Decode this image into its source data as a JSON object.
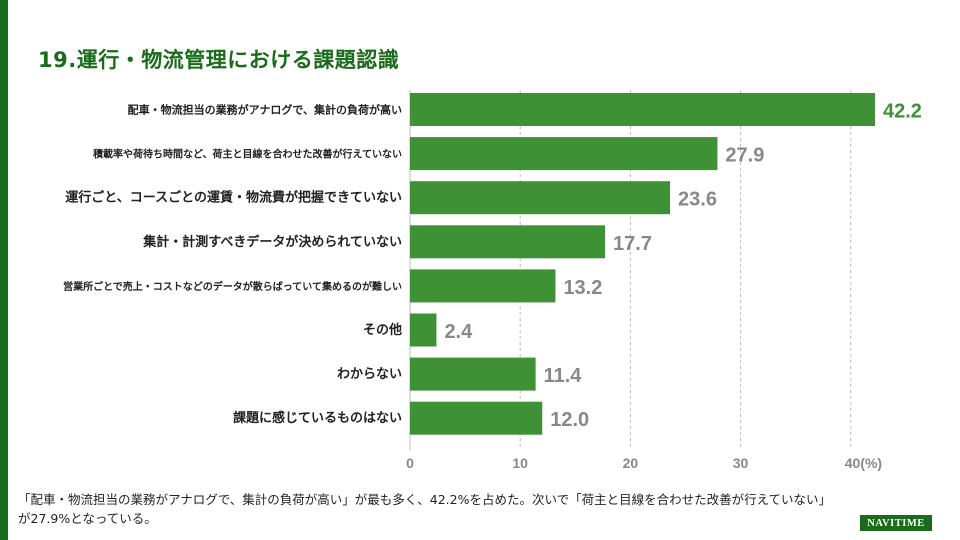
{
  "title": "19.運行・物流管理における課題認識",
  "chart_data": {
    "type": "bar",
    "orientation": "horizontal",
    "categories": [
      "配車・物流担当の業務がアナログで、集計の負荷が高い",
      "積載率や荷待ち時間など、荷主と目線を合わせた改善が行えていない",
      "運行ごと、コースごとの運賃・物流費が把握できていない",
      "集計・計測すべきデータが決められていない",
      "営業所ごとで売上・コストなどのデータが散らばっていて集めるのが難しい",
      "その他",
      "わからない",
      "課題に感じているものはない"
    ],
    "values": [
      42.2,
      27.9,
      23.6,
      17.7,
      13.2,
      2.4,
      11.4,
      12.0
    ],
    "value_labels": [
      "42.2",
      "27.9",
      "23.6",
      "17.7",
      "13.2",
      "2.4",
      "11.4",
      "12.0"
    ],
    "xlim": [
      0,
      42.2
    ],
    "xticks": [
      0,
      10,
      20,
      30,
      40
    ],
    "xtick_labels": [
      "0",
      "10",
      "20",
      "30",
      "40(%)"
    ],
    "xlabel": "(%)",
    "grid": true,
    "bar_color": "#3e9135",
    "highlight_label_color": "#3e9135",
    "label_color": "#888888"
  },
  "footer": {
    "line1": "「配車・物流担当の業務がアナログで、集計の負荷が高い」が最も多く、42.2%を占めた。次いで「荷主と目線を合わせた改善が行えていない」",
    "line2": "が27.9%となっている。"
  },
  "logo": "NAVITIME"
}
